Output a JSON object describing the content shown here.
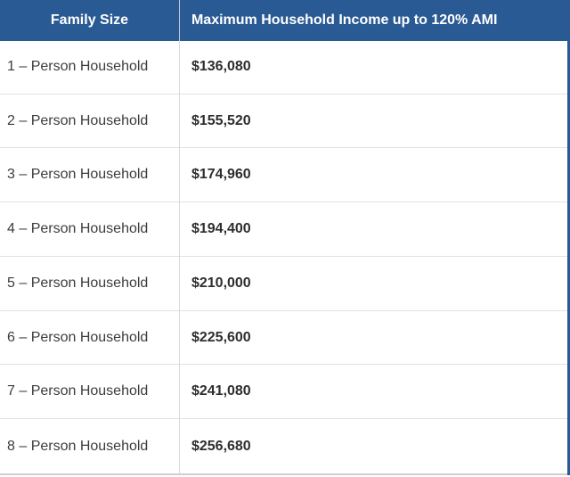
{
  "chart_data": {
    "type": "table",
    "columns": [
      "Family Size",
      "Maximum Household Income up to 120% AMI"
    ],
    "rows": [
      {
        "family_size": "1 – Person Household",
        "max_income": "$136,080"
      },
      {
        "family_size": "2 – Person Household",
        "max_income": "$155,520"
      },
      {
        "family_size": "3 – Person Household",
        "max_income": "$174,960"
      },
      {
        "family_size": "4 – Person Household",
        "max_income": "$194,400"
      },
      {
        "family_size": "5 – Person Household",
        "max_income": "$210,000"
      },
      {
        "family_size": "6 – Person Household",
        "max_income": "$225,600"
      },
      {
        "family_size": "7 – Person Household",
        "max_income": "$241,080"
      },
      {
        "family_size": "8 – Person Household",
        "max_income": "$256,680"
      }
    ]
  },
  "colors": {
    "header_bg": "#2A5A94",
    "header_text": "#FFFFFF",
    "header_column_divider": "#C3CAD3",
    "body_column_divider": "#D9D9D9",
    "row_divider": "#E2E2E2",
    "bottom_border": "#CFCFCF",
    "right_accent_border": "#2A5A94",
    "label_text": "#3C3C3C",
    "value_text": "#2E2E2E"
  }
}
